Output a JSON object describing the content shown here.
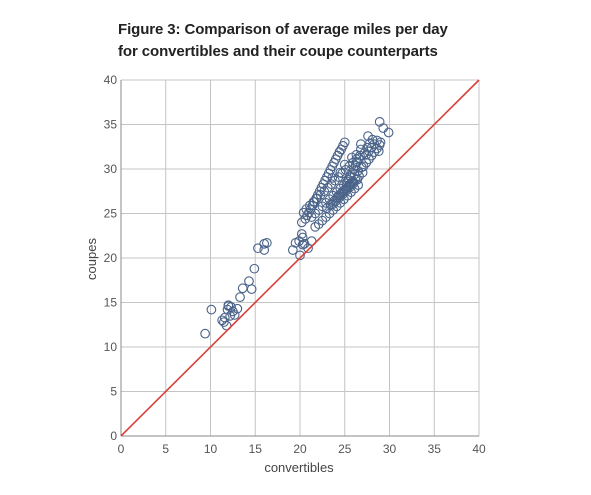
{
  "colors": {
    "point": "#4a6389",
    "diagonal": "#d9403a",
    "grid": "#c4c4c4",
    "axis": "#888888"
  },
  "chart_data": {
    "type": "scatter",
    "title_line1": "Figure 3: Comparison of average miles per day",
    "title_line2": "for convertibles and their coupe counterparts",
    "xlabel": "convertibles",
    "ylabel": "coupes",
    "xlim": [
      0,
      40
    ],
    "ylim": [
      0,
      40
    ],
    "xticks": [
      "0",
      "5",
      "10",
      "15",
      "20",
      "25",
      "30",
      "35",
      "40"
    ],
    "yticks": [
      "0",
      "5",
      "10",
      "15",
      "20",
      "25",
      "30",
      "35",
      "40"
    ],
    "grid": true,
    "marker": "open-circle",
    "reference_line": {
      "type": "y=x",
      "from": [
        0,
        0
      ],
      "to": [
        40,
        40
      ]
    },
    "x": [
      9.4,
      10.1,
      11.3,
      11.5,
      11.8,
      11.9,
      12.0,
      12.2,
      12.3,
      12.5,
      12.7,
      13.0,
      13.3,
      13.6,
      14.3,
      14.6,
      14.9,
      12.0,
      11.6,
      15.3,
      16.0,
      16.0,
      16.3,
      19.2,
      19.5,
      20.0,
      20.3,
      19.9,
      20.2,
      20.3,
      20.5,
      20.9,
      21.3,
      21.7,
      20.2,
      20.6,
      20.8,
      21.0,
      21.2,
      21.4,
      21.6,
      21.8,
      22.0,
      22.2,
      22.4,
      22.6,
      22.8,
      23.0,
      23.2,
      23.4,
      23.6,
      23.8,
      24.0,
      24.2,
      24.4,
      24.6,
      24.8,
      25.0,
      25.2,
      25.4,
      25.6,
      25.8,
      26.0,
      26.2,
      26.4,
      26.6,
      20.4,
      20.7,
      21.1,
      21.5,
      21.9,
      22.3,
      22.7,
      23.1,
      23.5,
      23.9,
      24.3,
      24.7,
      25.1,
      25.5,
      25.9,
      26.3,
      26.7,
      21.3,
      21.7,
      22.1,
      22.5,
      22.9,
      23.3,
      23.7,
      24.1,
      24.5,
      24.9,
      25.3,
      25.7,
      26.1,
      26.5,
      26.9,
      22.1,
      22.5,
      22.9,
      23.3,
      23.7,
      24.1,
      24.5,
      24.9,
      25.3,
      25.7,
      26.1,
      26.5,
      23.0,
      23.4,
      23.8,
      24.2,
      24.6,
      25.0,
      25.4,
      25.8,
      26.2,
      26.6,
      27.0,
      23.6,
      24.0,
      24.4,
      24.8,
      25.2,
      25.6,
      26.0,
      26.4,
      24.3,
      24.7,
      25.1,
      25.5,
      25.9,
      27.2,
      27.5,
      27.8,
      28.1,
      27.4,
      27.7,
      28.0,
      28.3,
      28.6,
      27.1,
      27.4,
      27.7,
      28.0,
      28.3,
      28.6,
      28.9,
      26.8,
      27.6,
      28.8,
      29.3,
      29.9,
      28.9,
      29.0,
      23.6,
      24.5,
      25.0,
      25.8,
      26.3,
      26.8
    ],
    "y": [
      11.5,
      14.2,
      13.0,
      12.8,
      12.4,
      14.2,
      14.7,
      13.5,
      14.5,
      14.0,
      13.6,
      14.3,
      15.6,
      16.6,
      17.4,
      16.5,
      18.8,
      14.6,
      13.3,
      21.1,
      20.9,
      21.6,
      21.7,
      20.9,
      21.7,
      20.3,
      21.5,
      21.9,
      22.7,
      22.3,
      21.6,
      21.1,
      21.9,
      23.5,
      24.0,
      24.4,
      24.8,
      25.1,
      25.5,
      25.9,
      26.3,
      26.7,
      27.1,
      27.5,
      27.9,
      28.3,
      28.7,
      29.1,
      29.5,
      29.9,
      30.3,
      30.7,
      31.1,
      31.5,
      31.9,
      32.2,
      32.6,
      33.0,
      28.4,
      28.8,
      29.2,
      29.6,
      30.0,
      30.4,
      30.8,
      31.2,
      25.1,
      25.5,
      25.9,
      26.3,
      26.7,
      27.1,
      27.5,
      27.9,
      28.3,
      28.7,
      29.1,
      29.5,
      29.9,
      30.3,
      30.7,
      31.1,
      31.5,
      24.6,
      25.0,
      25.4,
      25.8,
      26.2,
      26.6,
      27.0,
      27.4,
      27.8,
      28.2,
      28.6,
      29.0,
      29.4,
      29.8,
      30.2,
      23.8,
      24.2,
      24.6,
      25.0,
      25.4,
      25.8,
      26.2,
      26.6,
      27.0,
      27.4,
      27.8,
      28.2,
      25.6,
      26.0,
      26.4,
      26.8,
      27.2,
      27.6,
      28.0,
      28.4,
      28.8,
      29.2,
      29.6,
      26.0,
      26.4,
      26.8,
      27.2,
      27.6,
      28.0,
      28.4,
      28.8,
      27.0,
      27.4,
      27.8,
      28.2,
      28.6,
      31.8,
      32.4,
      32.9,
      33.3,
      31.6,
      32.0,
      32.4,
      32.8,
      33.2,
      30.3,
      30.7,
      31.1,
      31.5,
      31.9,
      32.3,
      32.7,
      32.8,
      33.7,
      32.0,
      34.6,
      34.1,
      35.3,
      33.0,
      29.0,
      29.6,
      30.5,
      31.3,
      31.6,
      32.2
    ]
  }
}
